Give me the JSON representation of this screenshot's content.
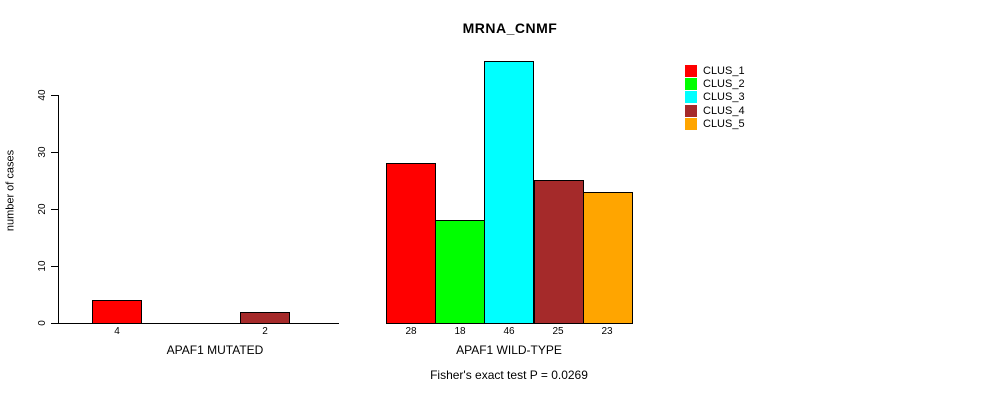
{
  "chart_data": {
    "type": "bar",
    "title": "MRNA_CNMF",
    "ylabel": "number of cases",
    "ylim": [
      0,
      46
    ],
    "yticks": [
      "0",
      "10",
      "20",
      "30",
      "40"
    ],
    "grid": false,
    "legend_position": "right",
    "legend": [
      {
        "label": "CLUS_1",
        "color": "#ff0000"
      },
      {
        "label": "CLUS_2",
        "color": "#00ff00"
      },
      {
        "label": "CLUS_3",
        "color": "#00ffff"
      },
      {
        "label": "CLUS_4",
        "color": "#a52a2a"
      },
      {
        "label": "CLUS_5",
        "color": "#ffa500"
      }
    ],
    "groups": [
      {
        "label": "APAF1 MUTATED",
        "values": [
          4,
          0,
          0,
          2,
          0
        ],
        "value_labels": [
          "4",
          "",
          "",
          "2",
          ""
        ]
      },
      {
        "label": "APAF1 WILD-TYPE",
        "values": [
          28,
          18,
          46,
          25,
          23
        ],
        "value_labels": [
          "28",
          "18",
          "46",
          "25",
          "23"
        ]
      }
    ],
    "annotation": "Fisher's exact test P = 0.0269"
  }
}
